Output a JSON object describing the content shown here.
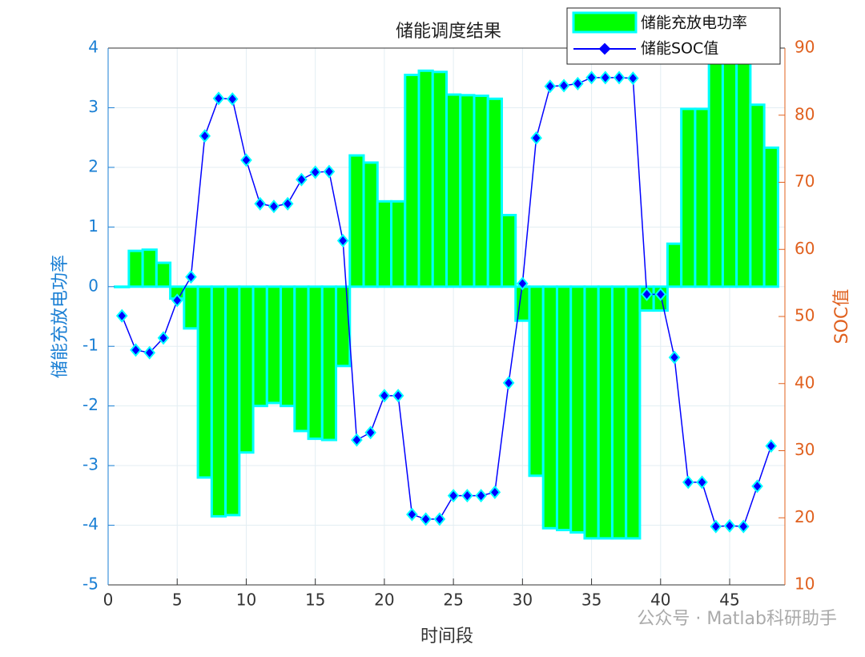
{
  "chart_data": {
    "type": "bar-line",
    "title": "储能调度结果",
    "xlabel": "时间段",
    "ylabel": "储能充放电功率",
    "y2label": "SOC值",
    "annotation": "公众号 · Matlab科研助手",
    "x": [
      1,
      2,
      3,
      4,
      5,
      6,
      7,
      8,
      9,
      10,
      11,
      12,
      13,
      14,
      15,
      16,
      17,
      18,
      19,
      20,
      21,
      22,
      23,
      24,
      25,
      26,
      27,
      28,
      29,
      30,
      31,
      32,
      33,
      34,
      35,
      36,
      37,
      38,
      39,
      40,
      41,
      42,
      43,
      44,
      45,
      46,
      47,
      48
    ],
    "series": [
      {
        "name": "储能充放电功率",
        "color": "#00ff00",
        "edgecolor": "#00ffff",
        "values": [
          0,
          0.6,
          0.62,
          0.4,
          -0.2,
          -0.7,
          -3.2,
          -3.85,
          -3.83,
          -2.78,
          -2.0,
          -1.95,
          -2.0,
          -2.42,
          -2.55,
          -2.57,
          -1.33,
          2.2,
          2.08,
          1.43,
          1.43,
          3.55,
          3.62,
          3.6,
          3.22,
          3.21,
          3.2,
          3.15,
          1.2,
          -0.57,
          -3.17,
          -4.05,
          -4.08,
          -4.12,
          -4.22,
          -4.22,
          -4.22,
          -4.22,
          -0.4,
          -0.4,
          0.72,
          2.98,
          2.98,
          4.0,
          4.0,
          4.0,
          3.05,
          2.33
        ]
      },
      {
        "name": "储能SOC值",
        "color": "#0000ff",
        "marker_edge": "#00ffff",
        "axis": "y2",
        "values": [
          50.1,
          45.0,
          44.6,
          46.8,
          52.4,
          55.9,
          76.9,
          82.5,
          82.4,
          73.3,
          66.8,
          66.4,
          66.8,
          70.4,
          71.5,
          71.6,
          61.3,
          31.6,
          32.7,
          38.2,
          38.2,
          20.5,
          19.8,
          19.8,
          23.3,
          23.3,
          23.3,
          23.8,
          40.1,
          54.9,
          76.6,
          84.3,
          84.4,
          84.7,
          85.6,
          85.6,
          85.6,
          85.5,
          53.3,
          53.3,
          43.9,
          25.3,
          25.3,
          18.7,
          18.8,
          18.7,
          24.7,
          30.7
        ]
      }
    ],
    "xlim": [
      0,
      49
    ],
    "xticks": [
      0,
      5,
      10,
      15,
      20,
      25,
      30,
      35,
      40,
      45
    ],
    "ylim": [
      -5,
      4
    ],
    "yticks": [
      -5,
      -4,
      -3,
      -2,
      -1,
      0,
      1,
      2,
      3,
      4
    ],
    "y2lim": [
      10,
      90
    ],
    "y2ticks": [
      10,
      20,
      30,
      40,
      50,
      60,
      70,
      80,
      90
    ],
    "grid": true,
    "legend": "top-right",
    "ycolor": "#1a7fd4",
    "y2color": "#e0601e"
  }
}
